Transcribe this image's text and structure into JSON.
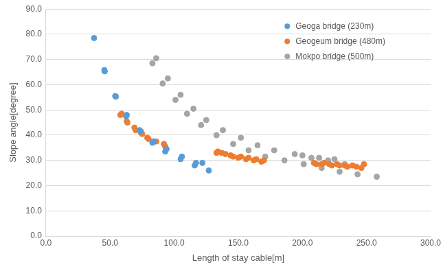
{
  "chart_data": {
    "type": "scatter",
    "x_label": "Length of stay cable[m]",
    "y_label": "Slope angle[degree]",
    "xlim": [
      0,
      300
    ],
    "xticks": [
      {
        "value": 0,
        "label": "0.0"
      },
      {
        "value": 50,
        "label": "50.0"
      },
      {
        "value": 100,
        "label": "100.0"
      },
      {
        "value": 150,
        "label": "150.0"
      },
      {
        "value": 200,
        "label": "200.0"
      },
      {
        "value": 250,
        "label": "250.0"
      },
      {
        "value": 300,
        "label": "300.0"
      }
    ],
    "ylim": [
      0,
      90
    ],
    "yticks": [
      {
        "value": 0,
        "label": "0.0"
      },
      {
        "value": 10,
        "label": "10.0"
      },
      {
        "value": 20,
        "label": "20.0"
      },
      {
        "value": 30,
        "label": "30.0"
      },
      {
        "value": 40,
        "label": "40.0"
      },
      {
        "value": 50,
        "label": "50.0"
      },
      {
        "value": 60,
        "label": "60.0"
      },
      {
        "value": 70,
        "label": "70.0"
      },
      {
        "value": 80,
        "label": "80.0"
      },
      {
        "value": 90,
        "label": "90.0"
      }
    ],
    "grid": "y",
    "legend": "top-right",
    "series": [
      {
        "name": "Geoga bridge (230m)",
        "color": "#5b9bd5",
        "marker": "circle",
        "x": [
          37.5,
          45.5,
          45.8,
          54,
          54.5,
          63,
          62.5,
          73,
          74,
          83,
          84,
          93,
          94,
          105,
          106,
          116,
          117,
          122,
          127
        ],
        "values": [
          78.5,
          65.8,
          65.3,
          55.5,
          55.3,
          48,
          47.5,
          42,
          41.5,
          37,
          37.5,
          33.5,
          34.5,
          30.5,
          31.5,
          28,
          29,
          29,
          26
        ]
      },
      {
        "name": "Geogeum bridge (480m)",
        "color": "#ed7d31",
        "marker": "circle",
        "x": [
          58,
          59,
          63,
          63.5,
          69,
          70,
          74,
          75,
          79,
          80,
          84,
          86,
          92,
          93,
          133,
          134,
          137,
          140,
          144,
          146,
          150,
          152,
          156,
          158,
          162,
          164,
          168,
          170,
          209,
          211,
          215,
          217,
          221,
          223,
          227,
          229,
          233,
          235,
          239,
          242,
          246,
          248
        ],
        "values": [
          48,
          48.5,
          45.5,
          45,
          43,
          42,
          41,
          40.5,
          39,
          38.5,
          37.5,
          37.5,
          36.5,
          35.5,
          33,
          33.5,
          33,
          32.5,
          32,
          31.5,
          31,
          31.5,
          30.5,
          31,
          30,
          30.5,
          29.5,
          30,
          29,
          28.5,
          28.5,
          29,
          28.5,
          28,
          28.5,
          28,
          28,
          27.5,
          28,
          27.5,
          27,
          28.5
        ]
      },
      {
        "name": "Mokpo bridge (500m)",
        "color": "#a5a5a5",
        "marker": "circle",
        "x": [
          83,
          86,
          91,
          95,
          101,
          105,
          110,
          115,
          121,
          125,
          133,
          138,
          146,
          152,
          158,
          165,
          171,
          178,
          186,
          194,
          200,
          201,
          207,
          213,
          215,
          220,
          225,
          229,
          233,
          243,
          258
        ],
        "values": [
          68.5,
          70.5,
          60.5,
          62.5,
          54,
          56,
          48.5,
          50.5,
          44,
          46,
          40,
          42,
          36.5,
          39,
          34,
          36,
          31.5,
          34,
          30,
          32.5,
          32,
          28.5,
          31,
          31,
          27,
          30,
          30.5,
          25.5,
          28.5,
          24.5,
          23.5
        ]
      }
    ]
  }
}
